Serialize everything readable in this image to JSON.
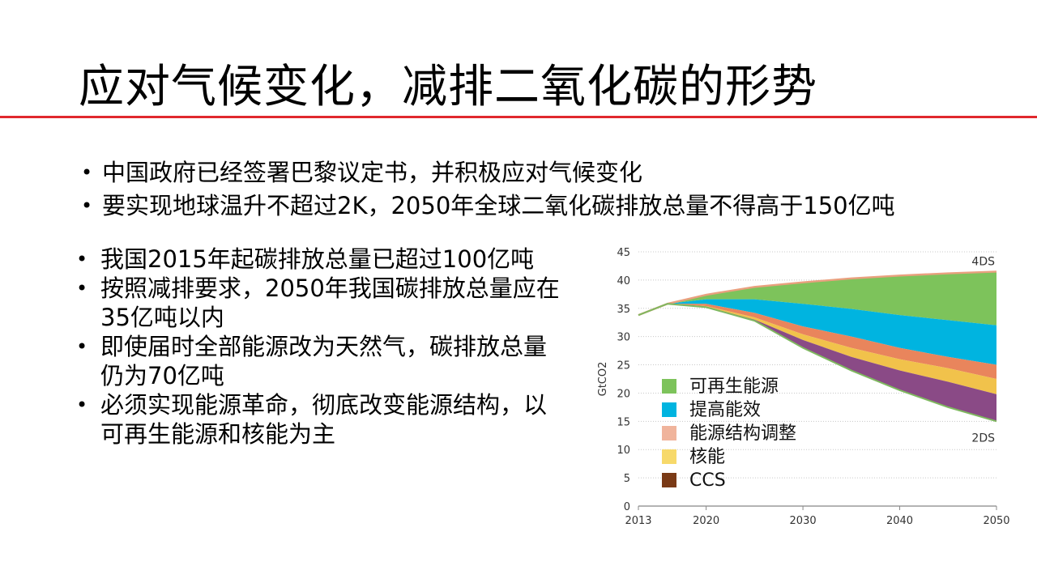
{
  "slide": {
    "title": "应对气候变化，减排二氧化碳的形势",
    "accent_color": "#e0282d"
  },
  "bullets_top": [
    "中国政府已经签署巴黎议定书，并积极应对气候变化",
    "要实现地球温升不超过2K，2050年全球二氧化碳排放总量不得高于150亿吨"
  ],
  "bullets_left": [
    "我国2015年起碳排放总量已超过100亿吨",
    "按照减排要求，2050年我国碳排放总量应在35亿吨以内",
    "即使届时全部能源改为天然气，碳排放总量仍为70亿吨",
    "必须实现能源革命，彻底改变能源结构，以可再生能源和核能为主"
  ],
  "chart_data": {
    "type": "area",
    "ylabel": "GtCO2",
    "ylim": [
      0,
      45
    ],
    "xlim": [
      2013,
      2050
    ],
    "yticks": [
      0,
      5,
      10,
      15,
      20,
      25,
      30,
      35,
      40,
      45
    ],
    "xticks": [
      2013,
      2020,
      2030,
      2040,
      2050
    ],
    "grid": true,
    "legend_position": "bottom-left",
    "scenario_labels": {
      "top": "4DS",
      "bottom": "2DS"
    },
    "x": [
      2013,
      2016,
      2020,
      2025,
      2030,
      2035,
      2040,
      2045,
      2050
    ],
    "boundaries": {
      "4DS": [
        33.8,
        35.8,
        37.4,
        38.8,
        39.6,
        40.3,
        40.8,
        41.2,
        41.5
      ],
      "after_renewables": [
        33.8,
        35.8,
        36.6,
        36.6,
        35.8,
        34.9,
        33.8,
        32.9,
        32.0
      ],
      "after_efficiency": [
        33.8,
        35.8,
        35.8,
        34.2,
        31.8,
        30.0,
        28.0,
        26.4,
        25.0
      ],
      "after_structure": [
        33.8,
        35.8,
        35.4,
        33.4,
        30.4,
        28.0,
        26.0,
        24.4,
        22.5
      ],
      "after_nuclear": [
        33.8,
        35.8,
        35.3,
        33.0,
        29.4,
        26.4,
        24.0,
        22.0,
        19.8
      ],
      "2DS": [
        33.8,
        35.8,
        35.2,
        32.8,
        28.0,
        24.0,
        20.5,
        17.5,
        15.0
      ]
    },
    "series": [
      {
        "name": "可再生能源",
        "color": "#7dc35b"
      },
      {
        "name": "提高能效",
        "color": "#00b4e0"
      },
      {
        "name": "能源结构调整",
        "color": "#e9855c"
      },
      {
        "name": "核能",
        "color": "#f1c24b"
      },
      {
        "name": "CCS",
        "color": "#8a4a86"
      }
    ],
    "legend_colors": [
      "#7dc35b",
      "#00b4e0",
      "#f0b49c",
      "#f7d96a",
      "#7a3a16"
    ]
  }
}
